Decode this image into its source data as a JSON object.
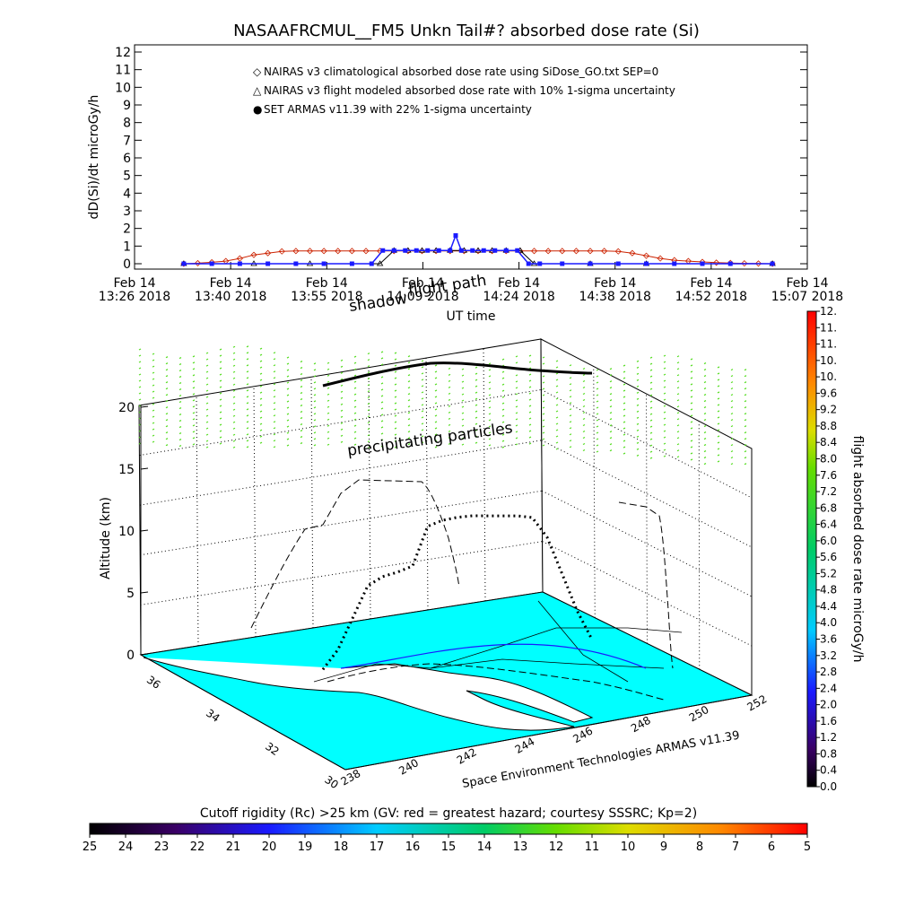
{
  "chart_data": [
    {
      "type": "line",
      "title": "NASAAFRCMUL__FM5 Unkn Tail#? absorbed dose rate (Si)",
      "ylabel": "dD(Si)/dt microGy/h",
      "xlabel": "UT time",
      "ylim": [
        0,
        12
      ],
      "yticks": [
        "0",
        "1",
        "2",
        "3",
        "4",
        "5",
        "6",
        "7",
        "8",
        "9",
        "10",
        "11",
        "12"
      ],
      "xticks": [
        {
          "top": "Feb 14",
          "bottom": "13:26 2018"
        },
        {
          "top": "Feb 14",
          "bottom": "13:40 2018"
        },
        {
          "top": "Feb 14",
          "bottom": "13:55 2018"
        },
        {
          "top": "Feb 14",
          "bottom": "14:09 2018"
        },
        {
          "top": "Feb 14",
          "bottom": "14:24 2018"
        },
        {
          "top": "Feb 14",
          "bottom": "14:38 2018"
        },
        {
          "top": "Feb 14",
          "bottom": "14:52 2018"
        },
        {
          "top": "Feb 14",
          "bottom": "15:07 2018"
        }
      ],
      "legend": [
        {
          "marker": "◇",
          "color": "#cc2200",
          "text": "NAIRAS v3 climatological absorbed dose rate using SiDose_GO.txt SEP=0"
        },
        {
          "marker": "△",
          "color": "#000000",
          "text": "NAIRAS v3 flight modeled absorbed dose rate with 10% 1-sigma uncertainty"
        },
        {
          "marker": "●",
          "color": "#1a1aff",
          "text": "SET ARMAS v11.39 with 22% 1-sigma uncertainty"
        }
      ],
      "series": [
        {
          "name": "NAIRAS v3 climatological absorbed dose rate using SiDose_GO.txt SEP=0",
          "x_minutes": [
            15,
            20,
            25,
            30,
            35,
            40,
            45,
            50,
            55,
            60,
            65,
            70,
            75,
            80,
            85,
            90,
            95,
            100,
            105,
            110,
            115,
            120,
            125,
            130,
            135,
            140,
            145,
            150,
            155,
            160,
            165,
            170,
            175,
            180,
            185,
            190,
            195,
            200,
            205,
            210,
            215,
            220,
            225
          ],
          "values": [
            0.0,
            0.03,
            0.08,
            0.15,
            0.3,
            0.5,
            0.6,
            0.7,
            0.72,
            0.72,
            0.72,
            0.72,
            0.72,
            0.72,
            0.72,
            0.72,
            0.72,
            0.72,
            0.72,
            0.72,
            0.72,
            0.72,
            0.72,
            0.72,
            0.72,
            0.72,
            0.72,
            0.72,
            0.72,
            0.72,
            0.72,
            0.7,
            0.6,
            0.45,
            0.3,
            0.2,
            0.15,
            0.1,
            0.06,
            0.04,
            0.02,
            0.01,
            0.0
          ]
        },
        {
          "name": "NAIRAS v3 flight modeled absorbed dose rate with 10% 1-sigma uncertainty",
          "x_minutes": [
            15,
            40,
            60,
            85,
            90,
            95,
            100,
            105,
            110,
            115,
            120,
            125,
            130,
            135,
            140,
            160,
            180,
            225
          ],
          "values": [
            0.0,
            0.0,
            0.0,
            0.0,
            0.75,
            0.75,
            0.75,
            0.75,
            0.75,
            0.75,
            0.75,
            0.75,
            0.75,
            0.75,
            0.0,
            0.0,
            0.0,
            0.0
          ]
        },
        {
          "name": "SET ARMAS v11.39 with 22% 1-sigma uncertainty",
          "x_minutes": [
            15,
            25,
            35,
            45,
            55,
            65,
            75,
            82,
            86,
            90,
            94,
            98,
            102,
            106,
            110,
            112,
            114,
            118,
            122,
            126,
            130,
            134,
            138,
            142,
            150,
            160,
            170,
            180,
            190,
            200,
            210,
            225
          ],
          "values": [
            0.0,
            0.0,
            0.0,
            0.0,
            0.0,
            0.0,
            0.0,
            0.0,
            0.75,
            0.75,
            0.75,
            0.75,
            0.75,
            0.75,
            0.75,
            1.6,
            0.75,
            0.75,
            0.75,
            0.75,
            0.75,
            0.75,
            0.0,
            0.0,
            0.0,
            0.0,
            0.0,
            0.0,
            0.0,
            0.0,
            0.0,
            0.0
          ]
        }
      ]
    },
    {
      "type": "scatter",
      "zlabel": "Altitude (km)",
      "zticks": [
        "0",
        "5",
        "10",
        "15",
        "20"
      ],
      "lat_ticks": [
        "36",
        "34",
        "32",
        "30"
      ],
      "lon_ticks": [
        "238",
        "240",
        "242",
        "244",
        "246",
        "248",
        "250",
        "252"
      ],
      "annotations": [
        "shadow",
        "flight path",
        "precipitating particles",
        "Space Environment Technologies ARMAS v11.39"
      ],
      "flight_profile_km": [
        0.8,
        2,
        4,
        6,
        6.5,
        6.7,
        7,
        9.5,
        9.8,
        9.9,
        9.9,
        9.8,
        9.7,
        9.6,
        9.4,
        8,
        5.5,
        3,
        1
      ]
    }
  ],
  "colorbar_right": {
    "label": "flight absorbed dose rate microGy/h",
    "ticks": [
      "0.0",
      "0.4",
      "0.8",
      "1.2",
      "1.6",
      "2.0",
      "2.4",
      "2.8",
      "3.2",
      "3.6",
      "4.0",
      "4.4",
      "4.8",
      "5.2",
      "5.6",
      "6.0",
      "6.4",
      "6.8",
      "7.2",
      "7.6",
      "8.0",
      "8.4",
      "8.8",
      "9.2",
      "9.6",
      "10.",
      "10.",
      "11.",
      "11.",
      "12."
    ]
  },
  "colorbar_bottom": {
    "label": "Cutoff rigidity (Rc) >25 km (GV: red = greatest hazard; courtesy SSSRC; Kp=2)",
    "ticks": [
      "25",
      "24",
      "23",
      "22",
      "21",
      "20",
      "19",
      "18",
      "17",
      "16",
      "15",
      "14",
      "13",
      "12",
      "11",
      "10",
      "9",
      "8",
      "7",
      "6",
      "5"
    ]
  },
  "colors": {
    "ground": "#00ffff",
    "particles": "#55dd22",
    "climatological": "#cc2200",
    "armas": "#1a1aff"
  }
}
